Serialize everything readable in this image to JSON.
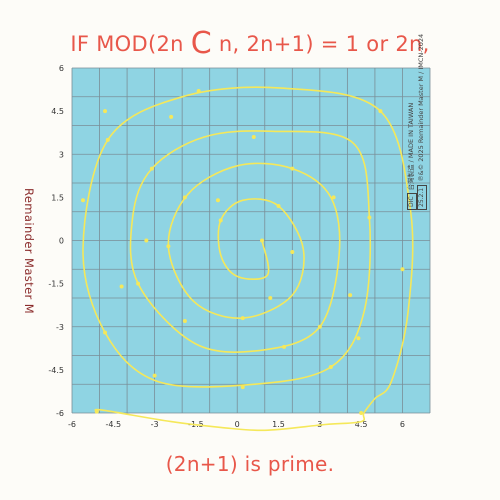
{
  "headline": {
    "before": "IF MOD(2n ",
    "big_letter": "C",
    "after": " n, 2n+1) = 1 or 2n,"
  },
  "footline": "(2n+1) is prime.",
  "side_title": "Remainder Master M",
  "credits": {
    "line1_badge": "DIC",
    "line1": "台灣製造 / MADE IN TAIWAN",
    "line2_badge": "25.2.1",
    "line2": "℗&© 2025 Remainder Master M / IMCN-2024"
  },
  "colors": {
    "text_accent": "#e8574a",
    "side_title": "#8b2c2c",
    "plot_bg": "#8fd4e3",
    "grid": "#7a8e97",
    "spiral": "#f5e85a"
  },
  "chart_data": {
    "type": "scatter",
    "title": "",
    "xlabel": "",
    "ylabel": "Remainder Master M",
    "xlim": [
      -6,
      7
    ],
    "ylim": [
      -6,
      6
    ],
    "x_ticks": [
      "-6",
      "-4.5",
      "-3",
      "-1.5",
      "0",
      "1.5",
      "3",
      "4.5",
      "6"
    ],
    "y_ticks": [
      "6",
      "4.5",
      "3",
      "1.5",
      "0",
      "-1.5",
      "-3",
      "-4.5",
      "-6"
    ],
    "grid": true,
    "series": [
      {
        "points": [
          [
            0.9,
            0.0
          ],
          [
            1.1,
            -1.2
          ],
          [
            0.0,
            -1.25
          ],
          [
            -0.6,
            -0.5
          ],
          [
            -0.6,
            0.7
          ],
          [
            0.2,
            1.4
          ],
          [
            1.5,
            1.2
          ],
          [
            2.4,
            -0.3
          ],
          [
            2.0,
            -1.9
          ],
          [
            0.2,
            -2.7
          ],
          [
            -1.6,
            -2.1
          ],
          [
            -2.5,
            -0.2
          ],
          [
            -1.8,
            1.6
          ],
          [
            0.0,
            2.6
          ],
          [
            2.0,
            2.5
          ],
          [
            3.4,
            1.5
          ],
          [
            3.7,
            -0.5
          ],
          [
            3.0,
            -3.0
          ],
          [
            1.0,
            -3.8
          ],
          [
            -1.5,
            -3.6
          ],
          [
            -3.6,
            -1.5
          ],
          [
            -3.8,
            0.8
          ],
          [
            -3.1,
            2.5
          ],
          [
            -1.2,
            3.6
          ],
          [
            1.3,
            3.8
          ],
          [
            4.2,
            3.4
          ],
          [
            4.8,
            0.8
          ],
          [
            4.6,
            -2.5
          ],
          [
            3.4,
            -4.4
          ],
          [
            0.6,
            -5.0
          ],
          [
            -2.9,
            -4.9
          ],
          [
            -4.8,
            -3.2
          ],
          [
            -5.6,
            -0.3
          ],
          [
            -4.7,
            3.5
          ],
          [
            -2.0,
            5.0
          ],
          [
            1.6,
            5.3
          ],
          [
            5.2,
            4.5
          ],
          [
            6.3,
            1.0
          ],
          [
            6.2,
            -2.5
          ],
          [
            5.6,
            -4.9
          ],
          [
            5.0,
            -5.5
          ],
          [
            4.6,
            -6.0
          ],
          [
            4.5,
            -6.3
          ],
          [
            3.2,
            -6.4
          ],
          [
            1.0,
            -6.6
          ],
          [
            -0.6,
            -6.5
          ],
          [
            -2.4,
            -6.3
          ],
          [
            -4.9,
            -5.9
          ],
          [
            -5.1,
            -5.95
          ]
        ],
        "marked_points": [
          [
            0.9,
            0.0
          ],
          [
            -0.6,
            0.7
          ],
          [
            1.5,
            1.2
          ],
          [
            0.2,
            -2.7
          ],
          [
            -2.5,
            -0.2
          ],
          [
            2.0,
            2.5
          ],
          [
            3.0,
            -3.0
          ],
          [
            -3.6,
            -1.5
          ],
          [
            -3.1,
            2.5
          ],
          [
            4.8,
            0.8
          ],
          [
            3.4,
            -4.4
          ],
          [
            -4.8,
            -3.2
          ],
          [
            -4.7,
            3.5
          ],
          [
            5.2,
            4.5
          ],
          [
            -5.1,
            -5.95
          ],
          [
            -0.7,
            1.4
          ],
          [
            2.0,
            -0.4
          ],
          [
            1.2,
            -2.0
          ],
          [
            -1.9,
            1.5
          ],
          [
            -1.9,
            -2.8
          ],
          [
            3.5,
            1.5
          ],
          [
            0.6,
            3.6
          ],
          [
            -3.3,
            0.0
          ],
          [
            1.7,
            -3.7
          ],
          [
            4.1,
            -1.9
          ],
          [
            -2.4,
            4.3
          ],
          [
            -4.2,
            -1.6
          ],
          [
            0.2,
            -5.1
          ],
          [
            -3.0,
            -4.7
          ],
          [
            4.4,
            -3.4
          ],
          [
            -5.6,
            1.4
          ],
          [
            -1.4,
            5.2
          ],
          [
            6.0,
            -1.0
          ],
          [
            4.5,
            -6.0
          ],
          [
            -4.8,
            4.5
          ]
        ]
      }
    ]
  }
}
